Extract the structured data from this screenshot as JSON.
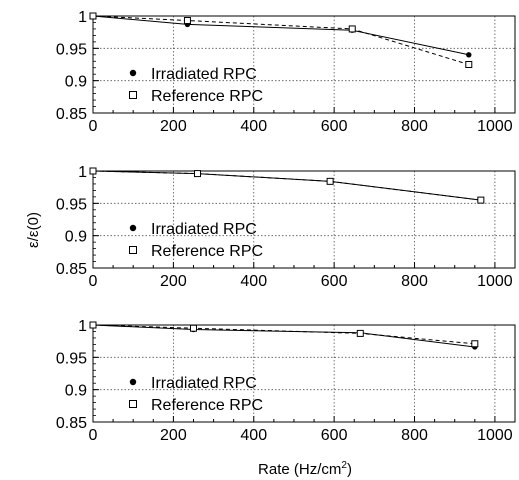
{
  "figure": {
    "xlabel_main": "Rate (Hz/cm",
    "xlabel_sup": "2",
    "xlabel_tail": ")",
    "ylabel": "ε/ε(0)"
  },
  "legend": {
    "irradiated": "Irradiated RPC",
    "reference": "Reference RPC"
  },
  "colors": {
    "line": "#000000",
    "grid": "#555555",
    "background": "#ffffff"
  },
  "chart_data": [
    {
      "type": "line",
      "xlim": [
        0,
        1050
      ],
      "ylim": [
        0.85,
        1.0
      ],
      "xticks": [
        0,
        200,
        400,
        600,
        800,
        1000
      ],
      "yticks": [
        0.85,
        0.9,
        0.95,
        1.0
      ],
      "ytick_labels": [
        "0.85",
        "0.9",
        "0.95",
        "1"
      ],
      "xtick_labels": [
        "0",
        "200",
        "400",
        "600",
        "800",
        "1000"
      ],
      "grid": true,
      "legend_position": "center",
      "series": [
        {
          "name": "Irradiated RPC",
          "marker": "filled-circle",
          "line": "solid",
          "x": [
            0,
            235,
            645,
            935
          ],
          "y": [
            1.0,
            0.987,
            0.978,
            0.94
          ]
        },
        {
          "name": "Reference RPC",
          "marker": "open-square",
          "line": "dashed",
          "x": [
            0,
            235,
            645,
            935
          ],
          "y": [
            1.0,
            0.993,
            0.98,
            0.925
          ]
        }
      ]
    },
    {
      "type": "line",
      "xlim": [
        0,
        1050
      ],
      "ylim": [
        0.85,
        1.0
      ],
      "xticks": [
        0,
        200,
        400,
        600,
        800,
        1000
      ],
      "yticks": [
        0.85,
        0.9,
        0.95,
        1.0
      ],
      "ytick_labels": [
        "0.85",
        "0.9",
        "0.95",
        "1"
      ],
      "xtick_labels": [
        "0",
        "200",
        "400",
        "600",
        "800",
        "1000"
      ],
      "grid": true,
      "legend_position": "center",
      "series": [
        {
          "name": "Irradiated RPC",
          "marker": "filled-circle",
          "line": "solid",
          "x": [
            0,
            260,
            590,
            965
          ],
          "y": [
            1.0,
            0.996,
            0.984,
            0.955
          ]
        },
        {
          "name": "Reference RPC",
          "marker": "open-square",
          "line": "dashed",
          "x": [
            0,
            260,
            590,
            965
          ],
          "y": [
            1.0,
            0.996,
            0.984,
            0.955
          ]
        }
      ]
    },
    {
      "type": "line",
      "xlim": [
        0,
        1050
      ],
      "ylim": [
        0.85,
        1.0
      ],
      "xticks": [
        0,
        200,
        400,
        600,
        800,
        1000
      ],
      "yticks": [
        0.85,
        0.9,
        0.95,
        1.0
      ],
      "ytick_labels": [
        "0.85",
        "0.9",
        "0.95",
        "1"
      ],
      "xtick_labels": [
        "0",
        "200",
        "400",
        "600",
        "800",
        "1000"
      ],
      "grid": true,
      "legend_position": "center",
      "series": [
        {
          "name": "Irradiated RPC",
          "marker": "filled-circle",
          "line": "solid",
          "x": [
            0,
            250,
            665,
            950
          ],
          "y": [
            1.0,
            0.993,
            0.988,
            0.966
          ]
        },
        {
          "name": "Reference RPC",
          "marker": "open-square",
          "line": "dashed",
          "x": [
            0,
            250,
            665,
            950
          ],
          "y": [
            1.0,
            0.995,
            0.987,
            0.971
          ]
        }
      ]
    }
  ]
}
